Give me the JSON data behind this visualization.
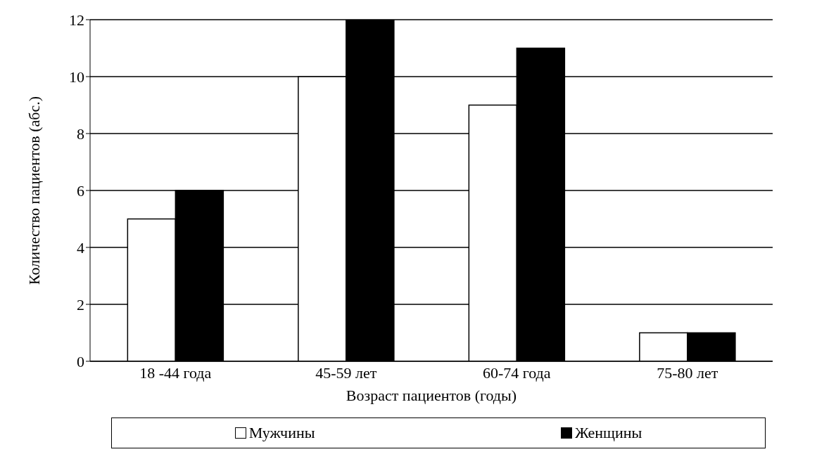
{
  "chart_data": {
    "type": "bar",
    "xlabel": "Возраст пациентов (годы)",
    "ylabel": "Количество пациентов (абс.)",
    "categories": [
      "18 -44 года",
      "45-59 лет",
      "60-74 года",
      "75-80 лет"
    ],
    "series": [
      {
        "name": "Мужчины",
        "color": "#ffffff",
        "values": [
          5,
          10,
          9,
          1
        ]
      },
      {
        "name": "Женщины",
        "color": "#000000",
        "values": [
          6,
          12,
          11,
          1
        ]
      }
    ],
    "ylim": [
      0,
      12
    ],
    "yticks": [
      0,
      2,
      4,
      6,
      8,
      10,
      12
    ],
    "grid": "y",
    "legend": "bottom"
  }
}
